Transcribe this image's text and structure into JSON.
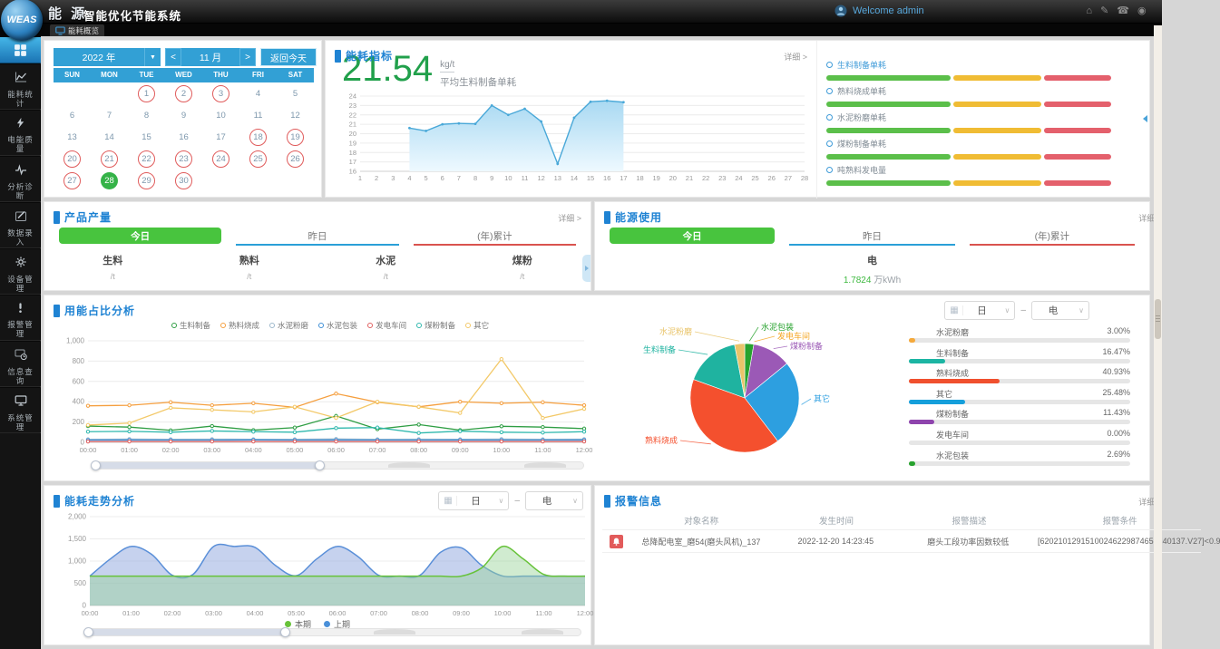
{
  "topbar": {
    "brand": "WEAS",
    "logo_cn": "能 源",
    "app_title": "智能优化节能系统",
    "welcome": "Welcome admin",
    "icons": [
      "home-icon",
      "edit-icon",
      "phone-icon",
      "clipped-icon"
    ]
  },
  "tabs": {
    "active": "能耗概览"
  },
  "sidebar": {
    "items": [
      {
        "id": "overview",
        "label": "",
        "icon": "grid-icon",
        "active": true
      },
      {
        "id": "energy-stats",
        "label": "能耗统计",
        "icon": "chart-icon"
      },
      {
        "id": "power-quality",
        "label": "电能质量",
        "icon": "bolt-icon"
      },
      {
        "id": "analysis-diagnosis",
        "label": "分析诊断",
        "icon": "pulse-icon"
      },
      {
        "id": "data-entry",
        "label": "数据录入",
        "icon": "pencil-icon"
      },
      {
        "id": "device-mgmt",
        "label": "设备管理",
        "icon": "gear-icon"
      },
      {
        "id": "alarm-mgmt",
        "label": "报警管理",
        "icon": "warn-icon"
      },
      {
        "id": "info-query",
        "label": "信息查询",
        "icon": "query-icon"
      },
      {
        "id": "system-mgmt",
        "label": "系统管理",
        "icon": "monitor-icon"
      }
    ]
  },
  "calendar": {
    "year": "2022 年",
    "month": "11 月",
    "prev": "<",
    "next": ">",
    "today_button": "返回今天",
    "weekdays": [
      "SUN",
      "MON",
      "TUE",
      "WED",
      "THU",
      "FRI",
      "SAT"
    ],
    "days": [
      {
        "d": "",
        "s": "empty"
      },
      {
        "d": "",
        "s": "empty"
      },
      {
        "d": "1",
        "s": "ring"
      },
      {
        "d": "2",
        "s": "ring"
      },
      {
        "d": "3",
        "s": "ring"
      },
      {
        "d": "4",
        "s": "plain"
      },
      {
        "d": "5",
        "s": "plain"
      },
      {
        "d": "6",
        "s": "plain"
      },
      {
        "d": "7",
        "s": "plain"
      },
      {
        "d": "8",
        "s": "plain"
      },
      {
        "d": "9",
        "s": "plain"
      },
      {
        "d": "10",
        "s": "plain"
      },
      {
        "d": "11",
        "s": "plain"
      },
      {
        "d": "12",
        "s": "plain"
      },
      {
        "d": "13",
        "s": "plain"
      },
      {
        "d": "14",
        "s": "plain"
      },
      {
        "d": "15",
        "s": "plain"
      },
      {
        "d": "16",
        "s": "plain"
      },
      {
        "d": "17",
        "s": "plain"
      },
      {
        "d": "18",
        "s": "ring"
      },
      {
        "d": "19",
        "s": "ring"
      },
      {
        "d": "20",
        "s": "ring"
      },
      {
        "d": "21",
        "s": "ring"
      },
      {
        "d": "22",
        "s": "ring"
      },
      {
        "d": "23",
        "s": "ring"
      },
      {
        "d": "24",
        "s": "ring"
      },
      {
        "d": "25",
        "s": "ring"
      },
      {
        "d": "26",
        "s": "ring"
      },
      {
        "d": "27",
        "s": "ring"
      },
      {
        "d": "28",
        "s": "selected"
      },
      {
        "d": "29",
        "s": "ring"
      },
      {
        "d": "30",
        "s": "ring"
      },
      {
        "d": "",
        "s": "empty"
      },
      {
        "d": "",
        "s": "empty"
      },
      {
        "d": "",
        "s": "empty"
      }
    ]
  },
  "energy_indicator": {
    "title": "能耗指标",
    "detail_link": "详细 >",
    "value": "21.54",
    "unit": "kg/t",
    "caption": "平均生料制备单耗",
    "metrics": [
      "生料制备单耗",
      "熟料烧成单耗",
      "水泥粉磨单耗",
      "煤粉制备单耗",
      "吨熟料发电量"
    ],
    "bar_segments": [
      {
        "color": "#5bbf4a",
        "width": 41
      },
      {
        "color": "#f0bc34",
        "width": 29
      },
      {
        "color": "#e4606c",
        "width": 22
      }
    ]
  },
  "product_output": {
    "title": "产品产量",
    "detail_link": "详细 >",
    "tabs": [
      "今日",
      "昨日",
      "(年)累计"
    ],
    "active_tab": "今日",
    "columns": [
      {
        "label": "生料",
        "value": "/t"
      },
      {
        "label": "熟料",
        "value": "/t"
      },
      {
        "label": "水泥",
        "value": "/t"
      },
      {
        "label": "煤粉",
        "value": "/t"
      }
    ]
  },
  "energy_usage": {
    "title": "能源使用",
    "detail_link": "详细 >",
    "tabs": [
      "今日",
      "昨日",
      "(年)累计"
    ],
    "active_tab": "今日",
    "item_label": "电",
    "item_value": "1.7824",
    "item_unit": "万kWh"
  },
  "proportion": {
    "title": "用能占比分析",
    "period_select": "日",
    "type_select": "电",
    "list": [
      {
        "label": "水泥粉磨",
        "pct": "3.00%",
        "value": 3.0,
        "color": "#f5a93b"
      },
      {
        "label": "生料制备",
        "pct": "16.47%",
        "value": 16.47,
        "color": "#1cb5a3"
      },
      {
        "label": "熟料烧成",
        "pct": "40.93%",
        "value": 40.93,
        "color": "#f0502e"
      },
      {
        "label": "其它",
        "pct": "25.48%",
        "value": 25.48,
        "color": "#159fdb"
      },
      {
        "label": "煤粉制备",
        "pct": "11.43%",
        "value": 11.43,
        "color": "#8e44ad"
      },
      {
        "label": "发电车间",
        "pct": "0.00%",
        "value": 0.0,
        "color": "#9e9e9e"
      },
      {
        "label": "水泥包装",
        "pct": "2.69%",
        "value": 2.69,
        "color": "#27a22e"
      }
    ]
  },
  "trend": {
    "title": "能耗走势分析",
    "period_select": "日",
    "type_select": "电",
    "legend": [
      {
        "label": "本期",
        "color": "#67c23a"
      },
      {
        "label": "上期",
        "color": "#4a90d9"
      }
    ]
  },
  "alarms": {
    "title": "报警信息",
    "detail_link": "详细 >",
    "headers": [
      "对象名称",
      "发生时间",
      "报警描述",
      "报警条件"
    ],
    "rows": [
      {
        "name": "总降配电室_磨54(磨头风机)_137",
        "time": "2022-12-20 14:23:45",
        "desc": "磨头工段功率因数较低",
        "condition": "[62021012915100246229874651d40137.V27]<0.9"
      }
    ]
  },
  "chart_data": [
    {
      "id": "indicator_trend",
      "type": "area",
      "title": "平均生料制备单耗",
      "ylabel": "kg/t",
      "xlim": [
        1,
        28
      ],
      "ylim": [
        16,
        24
      ],
      "x": [
        4,
        5,
        6,
        7,
        8,
        9,
        10,
        11,
        12,
        13,
        14,
        15,
        16,
        17
      ],
      "values": [
        20.6,
        20.3,
        21.0,
        21.1,
        21.05,
        23.0,
        22.0,
        22.65,
        21.3,
        16.8,
        21.7,
        23.4,
        23.5,
        23.35
      ],
      "line_color": "#49a8d8",
      "grid": true
    },
    {
      "id": "usage_by_section",
      "type": "line",
      "title": "用能占比分析",
      "ylim": [
        0,
        1000
      ],
      "x": [
        "00:00",
        "01:00",
        "02:00",
        "03:00",
        "04:00",
        "05:00",
        "06:00",
        "07:00",
        "08:00",
        "09:00",
        "10:00",
        "11:00",
        "12:00"
      ],
      "series": [
        {
          "name": "生料制备",
          "color": "#2f9e44",
          "values": [
            160,
            150,
            118,
            160,
            120,
            145,
            260,
            130,
            175,
            120,
            158,
            150,
            135
          ]
        },
        {
          "name": "熟料烧成",
          "color": "#f59f3f",
          "values": [
            360,
            365,
            395,
            365,
            385,
            345,
            480,
            395,
            350,
            400,
            385,
            395,
            365
          ]
        },
        {
          "name": "水泥粉磨",
          "color": "#9db8cc",
          "values": [
            30,
            32,
            30,
            31,
            30,
            30,
            33,
            30,
            31,
            30,
            32,
            30,
            31
          ]
        },
        {
          "name": "水泥包装",
          "color": "#3f8fd6",
          "values": [
            22,
            23,
            22,
            22,
            24,
            22,
            23,
            22,
            22,
            23,
            22,
            22,
            23
          ]
        },
        {
          "name": "发电车间",
          "color": "#e06060",
          "values": [
            8,
            8,
            8,
            8,
            8,
            8,
            8,
            8,
            8,
            8,
            8,
            8,
            8
          ]
        },
        {
          "name": "煤粉制备",
          "color": "#2fb8ad",
          "values": [
            105,
            108,
            100,
            112,
            105,
            100,
            140,
            145,
            92,
            110,
            100,
            96,
            105
          ]
        },
        {
          "name": "其它",
          "color": "#f3c969",
          "values": [
            170,
            190,
            340,
            320,
            300,
            350,
            240,
            400,
            350,
            290,
            820,
            240,
            330
          ]
        }
      ],
      "legend_position": "top",
      "grid": true
    },
    {
      "id": "usage_pie",
      "type": "pie",
      "title": "用能占比",
      "slices": [
        {
          "name": "水泥包装",
          "value": 2.69,
          "color": "#27a22e"
        },
        {
          "name": "发电车间",
          "value": 0.0,
          "color": "#f5a623"
        },
        {
          "name": "煤粉制备",
          "value": 11.43,
          "color": "#9b59b6"
        },
        {
          "name": "其它",
          "value": 25.48,
          "color": "#2d9fe0"
        },
        {
          "name": "熟料烧成",
          "value": 40.93,
          "color": "#f4502e"
        },
        {
          "name": "生料制备",
          "value": 16.47,
          "color": "#1fb3a0"
        },
        {
          "name": "水泥粉磨",
          "value": 3.0,
          "color": "#e9c46a"
        }
      ]
    },
    {
      "id": "trend_compare",
      "type": "area",
      "title": "能耗走势分析",
      "ylim": [
        0,
        2000
      ],
      "x": [
        "00:00",
        "01:00",
        "02:00",
        "03:00",
        "04:00",
        "05:00",
        "06:00",
        "07:00",
        "08:00",
        "09:00",
        "10:00",
        "11:00",
        "12:00"
      ],
      "series": [
        {
          "name": "上期",
          "color": "#5a8fd8",
          "fill": "rgba(141,166,222,0.5)",
          "values": [
            660,
            1050,
            1330,
            1150,
            680,
            700,
            1330,
            1330,
            1310,
            900,
            670,
            1050,
            1330,
            1100,
            680,
            660,
            680,
            1200,
            1300,
            900,
            665,
            660,
            660,
            660,
            660
          ]
        },
        {
          "name": "本期",
          "color": "#67c23a",
          "fill": "rgba(150,210,150,0.45)",
          "values": [
            660,
            660,
            660,
            660,
            660,
            660,
            660,
            660,
            660,
            660,
            660,
            660,
            660,
            660,
            660,
            660,
            660,
            660,
            660,
            850,
            1330,
            1050,
            700,
            660,
            660
          ]
        }
      ],
      "grid": true
    }
  ]
}
